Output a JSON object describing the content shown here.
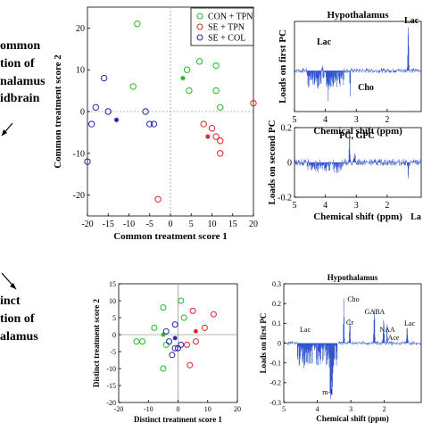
{
  "left_fragments": {
    "line1": "ommon",
    "line2": "tion of",
    "line3": "nalamus",
    "line4": "idbrain",
    "line5": "inct",
    "line6": "tion of",
    "line7": "alamus"
  },
  "chart_data": [
    {
      "type": "scatter",
      "xlabel": "Common treatment score 1",
      "ylabel": "Common treatment score 2",
      "xlim": [
        -20,
        20
      ],
      "ylim": [
        -25,
        25
      ],
      "xticks": [
        -20,
        -15,
        -10,
        -5,
        0,
        5,
        10,
        15,
        20
      ],
      "yticks": [
        -20,
        -10,
        0,
        10,
        20
      ],
      "legend_position": "top-right",
      "series": [
        {
          "name": "CON + TPN",
          "color": "#22bb22",
          "points": [
            [
              -8,
              21
            ],
            [
              -9,
              6
            ],
            [
              7,
              12
            ],
            [
              11,
              11
            ],
            [
              11,
              5
            ],
            [
              4,
              10
            ],
            [
              4.5,
              5
            ],
            [
              12,
              1
            ]
          ],
          "centroid": [
            3,
            8
          ]
        },
        {
          "name": "SE + TPN",
          "color": "#dd2222",
          "points": [
            [
              -3,
              -21
            ],
            [
              8,
              -3
            ],
            [
              10,
              -4
            ],
            [
              11,
              -6
            ],
            [
              12,
              -10
            ],
            [
              20,
              2
            ],
            [
              12,
              -7
            ]
          ],
          "centroid": [
            9,
            -6
          ]
        },
        {
          "name": "SE + COL",
          "color": "#2222aa",
          "points": [
            [
              -16,
              8
            ],
            [
              -18,
              1
            ],
            [
              -19,
              -3
            ],
            [
              -20,
              -12
            ],
            [
              -6,
              0
            ],
            [
              -4,
              -3
            ],
            [
              -5,
              -3
            ],
            [
              -15,
              0
            ]
          ],
          "centroid": [
            -13,
            -2
          ]
        }
      ]
    },
    {
      "type": "line",
      "title": "Hypothalamus",
      "ylabel": "Loads on first PC",
      "xlabel": "Chemical shift (ppm)",
      "xlim": [
        5,
        0.9
      ],
      "xticks": [
        5,
        4,
        3,
        2
      ],
      "ylim": [
        -0.05,
        0.06
      ],
      "annotations": [
        "Lac",
        "Lac",
        "Cho"
      ]
    },
    {
      "type": "line",
      "ylabel": "Loads on second PC",
      "xlabel": "Chemical shift (ppm)",
      "xlim": [
        5,
        0.9
      ],
      "xticks": [
        5,
        4,
        3,
        2
      ],
      "ylim": [
        -0.2,
        0.2
      ],
      "yticks": [
        -0.2,
        0,
        0.2
      ],
      "annotations": [
        "PC, GPC",
        "La"
      ]
    },
    {
      "type": "scatter",
      "xlabel": "Distinct treatment score 1",
      "ylabel": "Distinct treatment score 2",
      "xlim": [
        -20,
        20
      ],
      "ylim": [
        -20,
        15
      ],
      "xticks": [
        -20,
        -10,
        0,
        10,
        20
      ],
      "yticks": [
        -20,
        -15,
        -10,
        -5,
        0,
        5,
        10,
        15
      ],
      "series": [
        {
          "name": "CON + TPN",
          "color": "#22bb22",
          "points": [
            [
              -5,
              8
            ],
            [
              -8,
              2
            ],
            [
              -12,
              -2
            ],
            [
              -14,
              -2
            ],
            [
              -4,
              -3
            ],
            [
              2,
              5
            ],
            [
              -5,
              -10
            ],
            [
              1,
              10
            ]
          ],
          "centroid": [
            -5,
            0
          ]
        },
        {
          "name": "SE + TPN",
          "color": "#dd2222",
          "points": [
            [
              4,
              -9
            ],
            [
              5,
              7
            ],
            [
              9,
              2
            ],
            [
              12,
              6
            ],
            [
              6,
              -2
            ],
            [
              3,
              -3
            ]
          ],
          "centroid": [
            6,
            1
          ]
        },
        {
          "name": "SE + COL",
          "color": "#2222aa",
          "points": [
            [
              -1,
              3
            ],
            [
              -1,
              -4
            ],
            [
              -2,
              -6
            ],
            [
              -3,
              -2
            ],
            [
              -4,
              1
            ],
            [
              0,
              -4
            ],
            [
              1,
              -3
            ]
          ],
          "centroid": [
            -1,
            -1
          ]
        }
      ]
    },
    {
      "type": "line",
      "title": "Hypothalamus",
      "ylabel": "Loads on first PC",
      "xlabel": "Chemical shift (ppm)",
      "xlim": [
        5,
        0.9
      ],
      "xticks": [
        5,
        4,
        3,
        2
      ],
      "ylim": [
        -0.3,
        0.3
      ],
      "yticks": [
        -0.3,
        -0.2,
        -0.1,
        0,
        0.1,
        0.2,
        0.3
      ],
      "annotations": [
        "Cho",
        "GABA",
        "Cr",
        "NAA",
        "Ace",
        "Lac",
        "Lac",
        "m-I"
      ]
    }
  ]
}
